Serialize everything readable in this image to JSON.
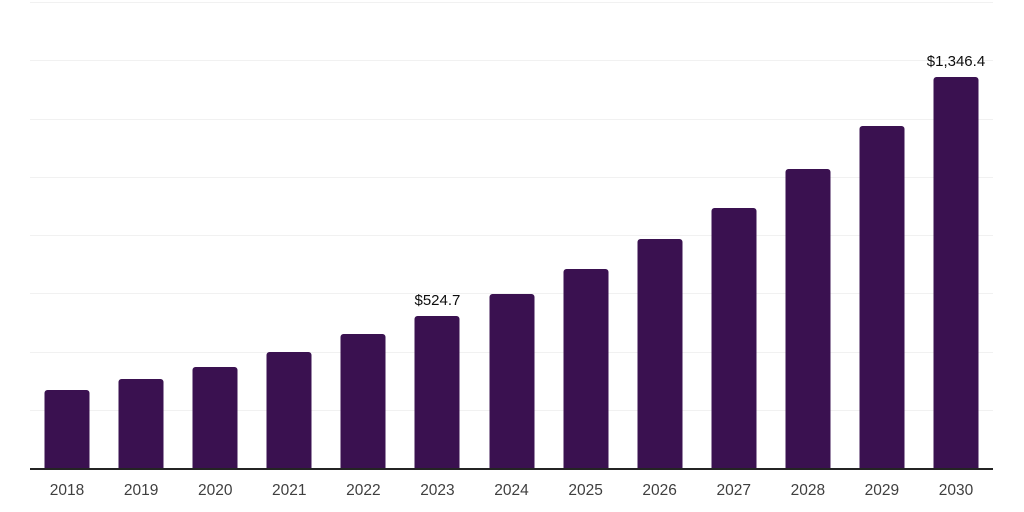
{
  "chart_data": {
    "type": "bar",
    "title": "",
    "xlabel": "",
    "ylabel": "",
    "categories": [
      "2018",
      "2019",
      "2020",
      "2021",
      "2022",
      "2023",
      "2024",
      "2025",
      "2026",
      "2027",
      "2028",
      "2029",
      "2030"
    ],
    "values": [
      270,
      310,
      351,
      402,
      463,
      524.7,
      601,
      688,
      790,
      898,
      1030,
      1177,
      1346.4
    ],
    "data_labels": {
      "2023": "$524.7",
      "2030": "$1,346.4"
    },
    "ylim": [
      0,
      1600
    ],
    "gridline_step": 200,
    "grid": true,
    "legend": "none",
    "colors": {
      "bar": "#3a1150",
      "gridline": "#f1f1f1",
      "axis_line": "#242424",
      "tick_label": "#3f3f3f",
      "data_label": "#0d0d0d",
      "background": "#ffffff"
    }
  }
}
